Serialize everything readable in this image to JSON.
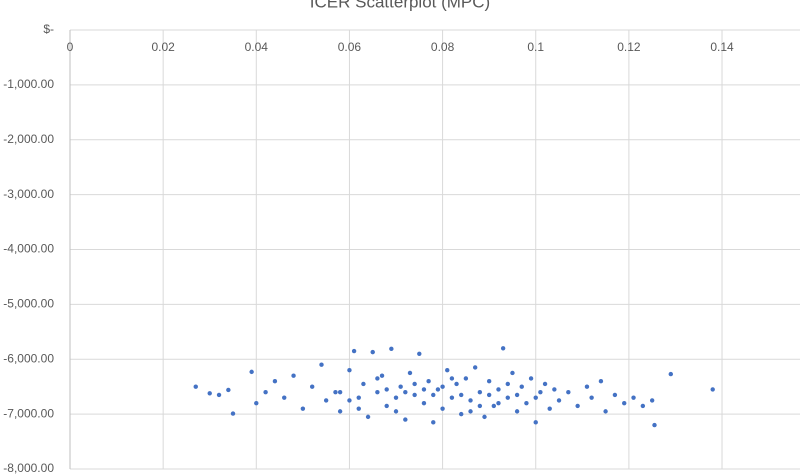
{
  "chart_data": {
    "type": "scatter",
    "title": "ICER Scatterplot (MPC)",
    "color": "#4472c4",
    "grid": true,
    "xlim": [
      0,
      0.15
    ],
    "xticks": [
      0,
      0.02,
      0.04,
      0.06,
      0.08,
      0.1,
      0.12,
      0.14
    ],
    "ylim": [
      -8000,
      0
    ],
    "yticks": [
      {
        "value": 0,
        "label": "$-"
      },
      {
        "value": -1000,
        "label": "-1,000.00"
      },
      {
        "value": -2000,
        "label": "-2,000.00"
      },
      {
        "value": -3000,
        "label": "-3,000.00"
      },
      {
        "value": -4000,
        "label": "-4,000.00"
      },
      {
        "value": -5000,
        "label": "-5,000.00"
      },
      {
        "value": -6000,
        "label": "-6,000.00"
      },
      {
        "value": -7000,
        "label": "-7,000.00"
      },
      {
        "value": -8000,
        "label": "-8,000.00"
      }
    ],
    "x": [
      0.027,
      0.03,
      0.032,
      0.034,
      0.035,
      0.039,
      0.04,
      0.042,
      0.044,
      0.046,
      0.048,
      0.05,
      0.052,
      0.054,
      0.055,
      0.057,
      0.058,
      0.06,
      0.061,
      0.062,
      0.063,
      0.064,
      0.065,
      0.066,
      0.067,
      0.068,
      0.069,
      0.07,
      0.071,
      0.072,
      0.073,
      0.074,
      0.075,
      0.076,
      0.077,
      0.078,
      0.079,
      0.08,
      0.081,
      0.082,
      0.083,
      0.084,
      0.085,
      0.086,
      0.087,
      0.088,
      0.089,
      0.09,
      0.091,
      0.092,
      0.093,
      0.094,
      0.095,
      0.096,
      0.097,
      0.098,
      0.099,
      0.1,
      0.101,
      0.102,
      0.103,
      0.104,
      0.105,
      0.107,
      0.109,
      0.111,
      0.112,
      0.114,
      0.115,
      0.117,
      0.119,
      0.121,
      0.123,
      0.125,
      0.1255,
      0.129,
      0.138,
      0.058,
      0.062,
      0.066,
      0.07,
      0.074,
      0.078,
      0.082,
      0.086,
      0.09,
      0.094,
      0.068,
      0.076,
      0.084,
      0.092,
      0.06,
      0.072,
      0.08,
      0.088,
      0.096,
      0.1
    ],
    "values": [
      -6500,
      -6620,
      -6650,
      -6560,
      -6990,
      -6230,
      -6800,
      -6600,
      -6400,
      -6700,
      -6300,
      -6900,
      -6500,
      -6100,
      -6750,
      -6600,
      -6950,
      -6200,
      -5850,
      -6700,
      -6450,
      -7050,
      -5870,
      -6600,
      -6300,
      -6850,
      -5810,
      -6700,
      -6500,
      -7100,
      -6250,
      -6650,
      -5900,
      -6800,
      -6400,
      -7150,
      -6550,
      -6900,
      -6200,
      -6700,
      -6450,
      -7000,
      -6350,
      -6750,
      -6150,
      -6600,
      -7050,
      -6400,
      -6850,
      -6550,
      -5800,
      -6700,
      -6250,
      -6950,
      -6500,
      -6800,
      -6350,
      -7150,
      -6600,
      -6450,
      -6900,
      -6550,
      -6750,
      -6600,
      -6850,
      -6500,
      -6700,
      -6400,
      -6950,
      -6650,
      -6800,
      -6700,
      -6850,
      -6750,
      -7200,
      -6270,
      -6550,
      -6600,
      -6900,
      -6350,
      -6950,
      -6450,
      -6650,
      -6350,
      -6950,
      -6650,
      -6450,
      -6550,
      -6550,
      -6650,
      -6800,
      -6750,
      -6600,
      -6500,
      -6850,
      -6650,
      -6700
    ]
  }
}
